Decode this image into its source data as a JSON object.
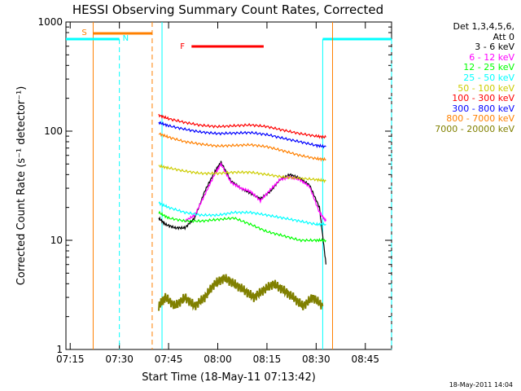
{
  "chart_data": {
    "type": "line",
    "title": "HESSI Observing Summary Count Rates, Corrected",
    "xlabel": "Start Time (18-May-11 07:13:42)",
    "ylabel": "Corrected Count Rate (s⁻¹ detector⁻¹)",
    "y_scale": "log",
    "xlim": [
      "07:13:42",
      "08:53:00"
    ],
    "ylim": [
      1,
      1000
    ],
    "x_ticks": [
      "07:15",
      "07:30",
      "07:45",
      "08:00",
      "08:15",
      "08:30",
      "08:45"
    ],
    "y_ticks": [
      "1",
      "10",
      "100",
      "1000"
    ],
    "legend_header": [
      "Det 1,3,4,5,6,",
      "Att 0"
    ],
    "legend_position": "right",
    "series": [
      {
        "name": "3 - 6 keV",
        "color": "#000000",
        "x": [
          "07:42",
          "07:44",
          "07:47",
          "07:50",
          "07:53",
          "07:56",
          "07:59",
          "08:01",
          "08:04",
          "08:07",
          "08:10",
          "08:13",
          "08:16",
          "08:19",
          "08:22",
          "08:25",
          "08:28",
          "08:31",
          "08:33"
        ],
        "y": [
          16,
          14,
          13,
          13,
          16,
          28,
          42,
          52,
          35,
          30,
          27,
          24,
          28,
          36,
          40,
          37,
          32,
          20,
          6
        ]
      },
      {
        "name": "6 - 12 keV",
        "color": "#ff00ff",
        "x": [
          "07:50",
          "07:53",
          "07:56",
          "07:59",
          "08:01",
          "08:04",
          "08:07",
          "08:10",
          "08:13",
          "08:16",
          "08:19",
          "08:22",
          "08:25",
          "08:28",
          "08:31",
          "08:33"
        ],
        "y": [
          15,
          17,
          26,
          40,
          50,
          34,
          30,
          28,
          23,
          29,
          36,
          38,
          36,
          31,
          18,
          15
        ]
      },
      {
        "name": "12 - 25 keV",
        "color": "#00ff00",
        "x": [
          "07:42",
          "07:45",
          "07:50",
          "07:55",
          "08:00",
          "08:05",
          "08:10",
          "08:15",
          "08:20",
          "08:25",
          "08:30",
          "08:33"
        ],
        "y": [
          18,
          16,
          15,
          15,
          15.5,
          16,
          14,
          12,
          11,
          10,
          10,
          10
        ]
      },
      {
        "name": "25 - 50 keV",
        "color": "#00ffff",
        "x": [
          "07:42",
          "07:45",
          "07:50",
          "07:55",
          "08:00",
          "08:05",
          "08:10",
          "08:15",
          "08:20",
          "08:25",
          "08:30",
          "08:33"
        ],
        "y": [
          22,
          20,
          18,
          17,
          17,
          18,
          18,
          17,
          16,
          15,
          14,
          14
        ]
      },
      {
        "name": "50 - 100 keV",
        "color": "#cccc00",
        "x": [
          "07:42",
          "07:45",
          "07:50",
          "07:55",
          "08:00",
          "08:05",
          "08:10",
          "08:15",
          "08:20",
          "08:25",
          "08:30",
          "08:33"
        ],
        "y": [
          48,
          46,
          43,
          41,
          41,
          42,
          42,
          40,
          38,
          37,
          36,
          35
        ]
      },
      {
        "name": "100 - 300 keV",
        "color": "#ff0000",
        "x": [
          "07:42",
          "07:45",
          "07:50",
          "07:55",
          "08:00",
          "08:05",
          "08:10",
          "08:15",
          "08:20",
          "08:25",
          "08:30",
          "08:33"
        ],
        "y": [
          140,
          130,
          120,
          113,
          110,
          112,
          114,
          110,
          102,
          95,
          90,
          88
        ]
      },
      {
        "name": "300 - 800 keV",
        "color": "#0000ff",
        "x": [
          "07:42",
          "07:45",
          "07:50",
          "07:55",
          "08:00",
          "08:05",
          "08:10",
          "08:15",
          "08:20",
          "08:25",
          "08:30",
          "08:33"
        ],
        "y": [
          120,
          112,
          104,
          98,
          95,
          96,
          97,
          93,
          86,
          80,
          74,
          72
        ]
      },
      {
        "name": "800 - 7000 keV",
        "color": "#ff8000",
        "x": [
          "07:42",
          "07:45",
          "07:50",
          "07:55",
          "08:00",
          "08:05",
          "08:10",
          "08:15",
          "08:20",
          "08:25",
          "08:30",
          "08:33"
        ],
        "y": [
          95,
          88,
          80,
          76,
          73,
          74,
          75,
          72,
          66,
          60,
          56,
          55
        ]
      },
      {
        "name": "7000 - 20000 keV",
        "color": "#808000",
        "x": [
          "07:42",
          "07:44",
          "07:47",
          "07:50",
          "07:53",
          "07:56",
          "07:59",
          "08:02",
          "08:05",
          "08:08",
          "08:11",
          "08:14",
          "08:17",
          "08:20",
          "08:23",
          "08:26",
          "08:29",
          "08:32"
        ],
        "y": [
          2.5,
          3,
          2.5,
          3,
          2.5,
          3,
          4,
          4.5,
          4,
          3.5,
          3,
          3.5,
          4,
          3.5,
          3,
          2.5,
          3,
          2.5
        ]
      }
    ],
    "annotations": [
      {
        "label": "S",
        "color": "#ff8000",
        "x_start": "07:22",
        "x_end": "07:40"
      },
      {
        "label": "N",
        "color": "#00ffff",
        "x_start": "07:13:42",
        "x_end": "07:30"
      },
      {
        "label": "F",
        "color": "#ff0000",
        "x_start": "07:52",
        "x_end": "08:14"
      },
      {
        "label": "",
        "color": "#00ffff",
        "x_start": "08:32",
        "x_end": "08:53"
      }
    ],
    "grid": false
  },
  "footer": {
    "date": "18-May-2011 14:04"
  }
}
